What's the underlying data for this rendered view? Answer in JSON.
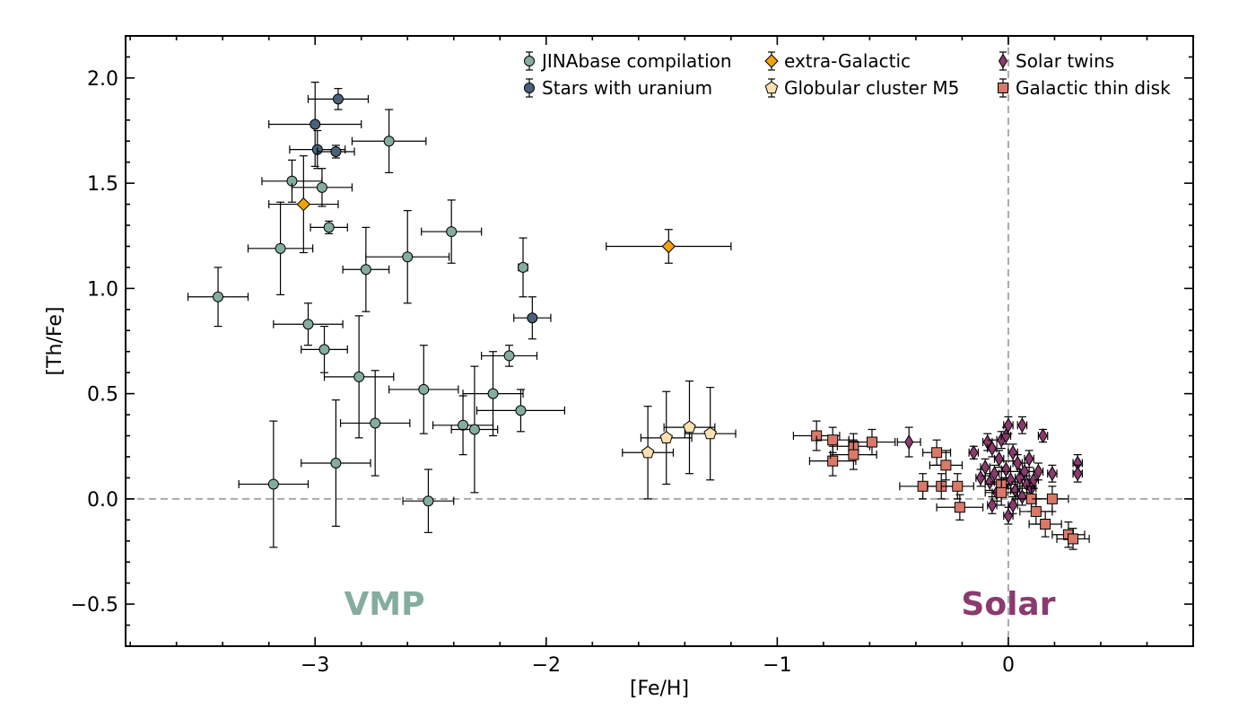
{
  "chart_data": {
    "type": "scatter",
    "title": "",
    "xlabel": "[Fe/H]",
    "ylabel": "[Th/Fe]",
    "xlim": [
      -3.82,
      0.8
    ],
    "ylim": [
      -0.7,
      2.2
    ],
    "xticks": [
      -3,
      -2,
      -1,
      0
    ],
    "xtick_labels": [
      "−3",
      "−2",
      "−1",
      "0"
    ],
    "yticks": [
      -0.5,
      0.0,
      0.5,
      1.0,
      1.5,
      2.0
    ],
    "ytick_labels": [
      "−0.5",
      "0.0",
      "0.5",
      "1.0",
      "1.5",
      "2.0"
    ],
    "reference_lines": {
      "x": 0,
      "y": 0,
      "style": "dashed",
      "color": "#aaaaaa"
    },
    "grid": false,
    "legend_position": "top-right",
    "annotations": [
      {
        "text": "VMP",
        "x": -2.7,
        "y": -0.5,
        "color": "#84ad9d"
      },
      {
        "text": "Solar",
        "x": 0.0,
        "y": -0.5,
        "color": "#8b3a6e"
      }
    ],
    "series": [
      {
        "name": "JINAbase compilation",
        "marker": "circle",
        "color": "#84ad9d",
        "points": [
          {
            "x": -3.42,
            "y": 0.96,
            "xerr": 0.13,
            "yerr": 0.14
          },
          {
            "x": -3.15,
            "y": 1.19,
            "xerr": 0.14,
            "yerr": 0.22
          },
          {
            "x": -3.18,
            "y": 0.07,
            "xerr": 0.15,
            "yerr": 0.3
          },
          {
            "x": -3.1,
            "y": 1.51,
            "xerr": 0.13,
            "yerr": 0.1
          },
          {
            "x": -3.03,
            "y": 0.83,
            "xerr": 0.15,
            "yerr": 0.1
          },
          {
            "x": -2.97,
            "y": 1.48,
            "xerr": 0.13,
            "yerr": 0.09
          },
          {
            "x": -2.96,
            "y": 0.71,
            "xerr": 0.1,
            "yerr": 0.11
          },
          {
            "x": -2.94,
            "y": 1.29,
            "xerr": 0.08,
            "yerr": 0.03
          },
          {
            "x": -2.91,
            "y": 0.17,
            "xerr": 0.15,
            "yerr": 0.3
          },
          {
            "x": -2.81,
            "y": 0.58,
            "xerr": 0.15,
            "yerr": 0.29
          },
          {
            "x": -2.78,
            "y": 1.09,
            "xerr": 0.1,
            "yerr": 0.2
          },
          {
            "x": -2.74,
            "y": 0.36,
            "xerr": 0.15,
            "yerr": 0.25
          },
          {
            "x": -2.68,
            "y": 1.7,
            "xerr": 0.16,
            "yerr": 0.15
          },
          {
            "x": -2.6,
            "y": 1.15,
            "xerr": 0.18,
            "yerr": 0.22
          },
          {
            "x": -2.53,
            "y": 0.52,
            "xerr": 0.15,
            "yerr": 0.21
          },
          {
            "x": -2.51,
            "y": -0.01,
            "xerr": 0.11,
            "yerr": 0.15
          },
          {
            "x": -2.41,
            "y": 1.27,
            "xerr": 0.13,
            "yerr": 0.15
          },
          {
            "x": -2.36,
            "y": 0.35,
            "xerr": 0.13,
            "yerr": 0.14
          },
          {
            "x": -2.31,
            "y": 0.33,
            "xerr": 0.1,
            "yerr": 0.3
          },
          {
            "x": -2.23,
            "y": 0.5,
            "xerr": 0.13,
            "yerr": 0.2
          },
          {
            "x": -2.16,
            "y": 0.68,
            "xerr": 0.12,
            "yerr": 0.05
          },
          {
            "x": -2.11,
            "y": 0.42,
            "xerr": 0.19,
            "yerr": 0.1
          },
          {
            "x": -2.1,
            "y": 1.1,
            "xerr": 0.02,
            "yerr": 0.14
          }
        ]
      },
      {
        "name": "Stars with uranium",
        "marker": "circle",
        "color": "#4a6178",
        "points": [
          {
            "x": -2.9,
            "y": 1.9,
            "xerr": 0.13,
            "yerr": 0.05
          },
          {
            "x": -3.0,
            "y": 1.78,
            "xerr": 0.2,
            "yerr": 0.2
          },
          {
            "x": -2.99,
            "y": 1.66,
            "xerr": 0.12,
            "yerr": 0.09
          },
          {
            "x": -2.91,
            "y": 1.65,
            "xerr": 0.08,
            "yerr": 0.03
          },
          {
            "x": -2.06,
            "y": 0.86,
            "xerr": 0.08,
            "yerr": 0.1
          }
        ]
      },
      {
        "name": "extra-Galactic",
        "marker": "diamond",
        "color": "#f4a20c",
        "points": [
          {
            "x": -3.05,
            "y": 1.4,
            "xerr": 0.15,
            "yerr": 0.23
          },
          {
            "x": -1.47,
            "y": 1.2,
            "xerr": 0.27,
            "yerr": 0.08
          }
        ]
      },
      {
        "name": "Globular cluster M5",
        "marker": "pentagon",
        "color": "#fde0b0",
        "points": [
          {
            "x": -1.56,
            "y": 0.22,
            "xerr": 0.11,
            "yerr": 0.22
          },
          {
            "x": -1.48,
            "y": 0.29,
            "xerr": 0.11,
            "yerr": 0.22
          },
          {
            "x": -1.38,
            "y": 0.34,
            "xerr": 0.11,
            "yerr": 0.22
          },
          {
            "x": -1.29,
            "y": 0.31,
            "xerr": 0.11,
            "yerr": 0.22
          }
        ]
      },
      {
        "name": "Solar twins",
        "marker": "thin_diamond",
        "color": "#8b3a6e",
        "points": [
          {
            "x": -0.43,
            "y": 0.27,
            "xerr": 0.05,
            "yerr": 0.07
          },
          {
            "x": -0.15,
            "y": 0.22,
            "xerr": 0.02,
            "yerr": 0.03
          },
          {
            "x": -0.12,
            "y": 0.1,
            "xerr": 0.02,
            "yerr": 0.04
          },
          {
            "x": -0.1,
            "y": 0.15,
            "xerr": 0.02,
            "yerr": 0.04
          },
          {
            "x": -0.09,
            "y": 0.27,
            "xerr": 0.02,
            "yerr": 0.04
          },
          {
            "x": -0.08,
            "y": 0.08,
            "xerr": 0.02,
            "yerr": 0.04
          },
          {
            "x": -0.07,
            "y": -0.03,
            "xerr": 0.02,
            "yerr": 0.04
          },
          {
            "x": -0.07,
            "y": 0.24,
            "xerr": 0.02,
            "yerr": 0.04
          },
          {
            "x": -0.06,
            "y": 0.12,
            "xerr": 0.02,
            "yerr": 0.04
          },
          {
            "x": -0.05,
            "y": 0.03,
            "xerr": 0.02,
            "yerr": 0.04
          },
          {
            "x": -0.04,
            "y": 0.19,
            "xerr": 0.02,
            "yerr": 0.04
          },
          {
            "x": -0.03,
            "y": 0.28,
            "xerr": 0.02,
            "yerr": 0.04
          },
          {
            "x": -0.02,
            "y": 0.06,
            "xerr": 0.02,
            "yerr": 0.04
          },
          {
            "x": -0.01,
            "y": 0.14,
            "xerr": 0.02,
            "yerr": 0.04
          },
          {
            "x": -0.01,
            "y": 0.3,
            "xerr": 0.02,
            "yerr": 0.04
          },
          {
            "x": 0.0,
            "y": 0.35,
            "xerr": 0.02,
            "yerr": 0.04
          },
          {
            "x": 0.0,
            "y": -0.08,
            "xerr": 0.02,
            "yerr": 0.04
          },
          {
            "x": 0.01,
            "y": 0.09,
            "xerr": 0.02,
            "yerr": 0.04
          },
          {
            "x": 0.02,
            "y": 0.22,
            "xerr": 0.02,
            "yerr": 0.04
          },
          {
            "x": 0.02,
            "y": -0.03,
            "xerr": 0.02,
            "yerr": 0.04
          },
          {
            "x": 0.03,
            "y": 0.04,
            "xerr": 0.02,
            "yerr": 0.04
          },
          {
            "x": 0.04,
            "y": 0.17,
            "xerr": 0.02,
            "yerr": 0.04
          },
          {
            "x": 0.05,
            "y": 0.1,
            "xerr": 0.02,
            "yerr": 0.04
          },
          {
            "x": 0.06,
            "y": 0.35,
            "xerr": 0.02,
            "yerr": 0.04
          },
          {
            "x": 0.06,
            "y": 0.01,
            "xerr": 0.02,
            "yerr": 0.04
          },
          {
            "x": 0.07,
            "y": 0.13,
            "xerr": 0.02,
            "yerr": 0.04
          },
          {
            "x": 0.08,
            "y": 0.07,
            "xerr": 0.02,
            "yerr": 0.04
          },
          {
            "x": 0.09,
            "y": 0.19,
            "xerr": 0.02,
            "yerr": 0.04
          },
          {
            "x": 0.1,
            "y": 0.05,
            "xerr": 0.02,
            "yerr": 0.04
          },
          {
            "x": 0.11,
            "y": 0.09,
            "xerr": 0.02,
            "yerr": 0.04
          },
          {
            "x": 0.13,
            "y": 0.13,
            "xerr": 0.02,
            "yerr": 0.04
          },
          {
            "x": 0.15,
            "y": 0.3,
            "xerr": 0.02,
            "yerr": 0.03
          },
          {
            "x": 0.19,
            "y": 0.12,
            "xerr": 0.02,
            "yerr": 0.04
          },
          {
            "x": 0.3,
            "y": 0.17,
            "xerr": 0.02,
            "yerr": 0.04
          },
          {
            "x": 0.3,
            "y": 0.12,
            "xerr": 0.02,
            "yerr": 0.04
          }
        ]
      },
      {
        "name": "Galactic thin disk",
        "marker": "square",
        "color": "#d9796a",
        "points": [
          {
            "x": -0.83,
            "y": 0.3,
            "xerr": 0.1,
            "yerr": 0.07
          },
          {
            "x": -0.76,
            "y": 0.28,
            "xerr": 0.07,
            "yerr": 0.06
          },
          {
            "x": -0.76,
            "y": 0.18,
            "xerr": 0.1,
            "yerr": 0.07
          },
          {
            "x": -0.67,
            "y": 0.25,
            "xerr": 0.07,
            "yerr": 0.06
          },
          {
            "x": -0.67,
            "y": 0.21,
            "xerr": 0.1,
            "yerr": 0.07
          },
          {
            "x": -0.59,
            "y": 0.27,
            "xerr": 0.1,
            "yerr": 0.06
          },
          {
            "x": -0.37,
            "y": 0.06,
            "xerr": 0.1,
            "yerr": 0.06
          },
          {
            "x": -0.31,
            "y": 0.22,
            "xerr": 0.06,
            "yerr": 0.06
          },
          {
            "x": -0.29,
            "y": 0.06,
            "xerr": 0.06,
            "yerr": 0.06
          },
          {
            "x": -0.27,
            "y": 0.16,
            "xerr": 0.07,
            "yerr": 0.07
          },
          {
            "x": -0.22,
            "y": 0.06,
            "xerr": 0.07,
            "yerr": 0.06
          },
          {
            "x": -0.21,
            "y": -0.04,
            "xerr": 0.1,
            "yerr": 0.06
          },
          {
            "x": -0.03,
            "y": 0.07,
            "xerr": 0.07,
            "yerr": 0.06
          },
          {
            "x": -0.03,
            "y": 0.03,
            "xerr": 0.07,
            "yerr": 0.06
          },
          {
            "x": 0.1,
            "y": 0.0,
            "xerr": 0.07,
            "yerr": 0.06
          },
          {
            "x": 0.12,
            "y": -0.06,
            "xerr": 0.07,
            "yerr": 0.06
          },
          {
            "x": 0.16,
            "y": -0.12,
            "xerr": 0.07,
            "yerr": 0.06
          },
          {
            "x": 0.19,
            "y": 0.0,
            "xerr": 0.07,
            "yerr": 0.06
          },
          {
            "x": 0.26,
            "y": -0.17,
            "xerr": 0.07,
            "yerr": 0.06
          },
          {
            "x": 0.28,
            "y": -0.19,
            "xerr": 0.07,
            "yerr": 0.05
          }
        ]
      }
    ]
  }
}
